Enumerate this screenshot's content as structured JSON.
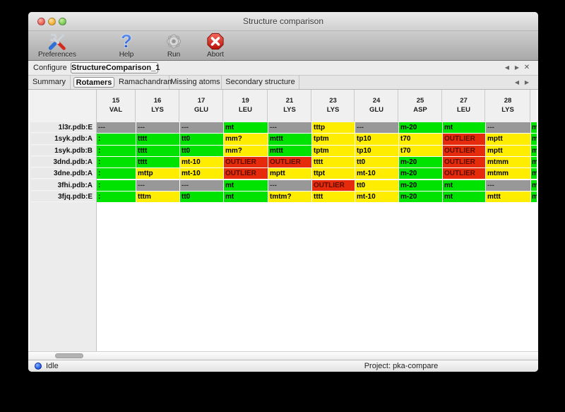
{
  "window": {
    "title": "Structure comparison"
  },
  "traffic_lights": {
    "close": "close",
    "minimize": "minimize",
    "zoom": "zoom"
  },
  "toolbar": {
    "buttons": [
      {
        "label": "Preferences",
        "icon": "tools-icon"
      },
      {
        "label": "Help",
        "icon": "help-icon"
      },
      {
        "label": "Run",
        "icon": "gear-icon"
      },
      {
        "label": "Abort",
        "icon": "abort-icon"
      }
    ]
  },
  "configure": {
    "label": "Configure",
    "value": "StructureComparison_1",
    "active": true
  },
  "nav": {
    "prev": "◀",
    "next": "▶",
    "close": "✕"
  },
  "tabs": [
    {
      "label": "Summary",
      "active": false
    },
    {
      "label": "Rotamers",
      "active": true
    },
    {
      "label": "Ramachandran",
      "active": false
    },
    {
      "label": "Missing atoms",
      "active": false
    },
    {
      "label": "Secondary structure",
      "active": false
    }
  ],
  "colors": {
    "green": "#00e300",
    "yellow": "#ffed00",
    "red": "#e52b0c",
    "gray": "#989898"
  },
  "table": {
    "columns": [
      {
        "num": "15",
        "res": "VAL"
      },
      {
        "num": "16",
        "res": "LYS"
      },
      {
        "num": "17",
        "res": "GLU"
      },
      {
        "num": "19",
        "res": "LEU"
      },
      {
        "num": "21",
        "res": "LYS"
      },
      {
        "num": "23",
        "res": "LYS"
      },
      {
        "num": "24",
        "res": "GLU"
      },
      {
        "num": "25",
        "res": "ASP"
      },
      {
        "num": "27",
        "res": "LEU"
      },
      {
        "num": "28",
        "res": "LYS"
      }
    ],
    "rows": [
      {
        "label": "1l3r.pdb:E",
        "cells": [
          [
            "---",
            "gray"
          ],
          [
            "---",
            "gray"
          ],
          [
            "---",
            "gray"
          ],
          [
            "mt",
            "green"
          ],
          [
            "---",
            "gray"
          ],
          [
            "tttp",
            "yellow"
          ],
          [
            "---",
            "gray"
          ],
          [
            "m-20",
            "green"
          ],
          [
            "mt",
            "green"
          ],
          [
            "---",
            "gray"
          ]
        ],
        "overflow": [
          "m",
          "green"
        ]
      },
      {
        "label": "1syk.pdb:A",
        "cells": [
          [
            ":",
            "green"
          ],
          [
            "tttt",
            "green"
          ],
          [
            "tt0",
            "green"
          ],
          [
            "mm?",
            "yellow"
          ],
          [
            "mttt",
            "green"
          ],
          [
            "tptm",
            "yellow"
          ],
          [
            "tp10",
            "yellow"
          ],
          [
            "t70",
            "yellow"
          ],
          [
            "OUTLIER",
            "red"
          ],
          [
            "mptt",
            "yellow"
          ]
        ],
        "overflow": [
          "m",
          "green"
        ]
      },
      {
        "label": "1syk.pdb:B",
        "cells": [
          [
            ":",
            "green"
          ],
          [
            "tttt",
            "green"
          ],
          [
            "tt0",
            "green"
          ],
          [
            "mm?",
            "yellow"
          ],
          [
            "mttt",
            "green"
          ],
          [
            "tptm",
            "yellow"
          ],
          [
            "tp10",
            "yellow"
          ],
          [
            "t70",
            "yellow"
          ],
          [
            "OUTLIER",
            "red"
          ],
          [
            "mptt",
            "yellow"
          ]
        ],
        "overflow": [
          "m",
          "green"
        ]
      },
      {
        "label": "3dnd.pdb:A",
        "cells": [
          [
            ":",
            "green"
          ],
          [
            "tttt",
            "green"
          ],
          [
            "mt-10",
            "yellow"
          ],
          [
            "OUTLIER",
            "red"
          ],
          [
            "OUTLIER",
            "red"
          ],
          [
            "tttt",
            "yellow"
          ],
          [
            "tt0",
            "yellow"
          ],
          [
            "m-20",
            "green"
          ],
          [
            "OUTLIER",
            "red"
          ],
          [
            "mtmm",
            "yellow"
          ]
        ],
        "overflow": [
          "m",
          "green"
        ]
      },
      {
        "label": "3dne.pdb:A",
        "cells": [
          [
            ":",
            "green"
          ],
          [
            "mttp",
            "yellow"
          ],
          [
            "mt-10",
            "yellow"
          ],
          [
            "OUTLIER",
            "red"
          ],
          [
            "mptt",
            "yellow"
          ],
          [
            "ttpt",
            "yellow"
          ],
          [
            "mt-10",
            "yellow"
          ],
          [
            "m-20",
            "green"
          ],
          [
            "OUTLIER",
            "red"
          ],
          [
            "mtmm",
            "yellow"
          ]
        ],
        "overflow": [
          "m",
          "green"
        ]
      },
      {
        "label": "3fhi.pdb:A",
        "cells": [
          [
            ":",
            "green"
          ],
          [
            "---",
            "gray"
          ],
          [
            "---",
            "gray"
          ],
          [
            "mt",
            "green"
          ],
          [
            "---",
            "gray"
          ],
          [
            "OUTLIER",
            "red"
          ],
          [
            "tt0",
            "yellow"
          ],
          [
            "m-20",
            "green"
          ],
          [
            "mt",
            "green"
          ],
          [
            "---",
            "gray"
          ]
        ],
        "overflow": [
          "m",
          "green"
        ]
      },
      {
        "label": "3fjq.pdb:E",
        "cells": [
          [
            ":",
            "green"
          ],
          [
            "tttm",
            "yellow"
          ],
          [
            "tt0",
            "green"
          ],
          [
            "mt",
            "green"
          ],
          [
            "tmtm?",
            "yellow"
          ],
          [
            "tttt",
            "yellow"
          ],
          [
            "mt-10",
            "yellow"
          ],
          [
            "m-20",
            "green"
          ],
          [
            "mt",
            "green"
          ],
          [
            "mttt",
            "yellow"
          ]
        ],
        "overflow": [
          "m",
          "green"
        ]
      }
    ]
  },
  "statusbar": {
    "status": "Idle",
    "project": "Project: pka-compare"
  }
}
